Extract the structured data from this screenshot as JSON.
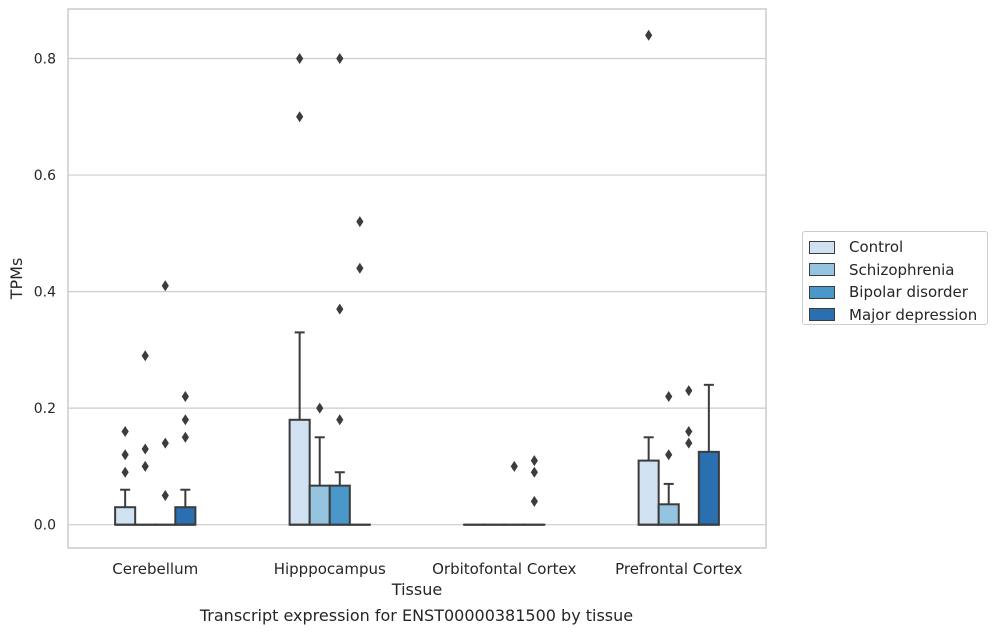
{
  "caption": "Transcript expression for ENST00000381500 by tissue",
  "chart_data": {
    "type": "box",
    "xlabel": "Tissue",
    "ylabel": "TPMs",
    "ylim": [
      -0.04,
      0.885
    ],
    "yticks": [
      0.0,
      0.2,
      0.4,
      0.6,
      0.8
    ],
    "ytick_labels": [
      "0.0",
      "0.2",
      "0.4",
      "0.6",
      "0.8"
    ],
    "grid": "horizontal",
    "legend_position": "right",
    "categories": [
      "Cerebellum",
      "Hipppocampus",
      "Orbitofontal Cortex",
      "Prefrontal Cortex"
    ],
    "series": [
      {
        "name": "Control",
        "color": "#d0e1f2",
        "boxes": [
          {
            "q1": 0.0,
            "median": 0.0,
            "q3": 0.03,
            "whisker_low": 0.0,
            "whisker_high": 0.06,
            "fliers": [
              0.09,
              0.12,
              0.16
            ]
          },
          {
            "q1": 0.0,
            "median": 0.0,
            "q3": 0.18,
            "whisker_low": 0.0,
            "whisker_high": 0.33,
            "fliers": [
              0.7,
              0.8
            ]
          },
          {
            "q1": 0.0,
            "median": 0.0,
            "q3": 0.0,
            "whisker_low": 0.0,
            "whisker_high": 0.0,
            "fliers": []
          },
          {
            "q1": 0.0,
            "median": 0.0,
            "q3": 0.11,
            "whisker_low": 0.0,
            "whisker_high": 0.15,
            "fliers": [
              0.84
            ]
          }
        ]
      },
      {
        "name": "Schizophrenia",
        "color": "#94c4df",
        "boxes": [
          {
            "q1": 0.0,
            "median": 0.0,
            "q3": 0.0,
            "whisker_low": 0.0,
            "whisker_high": 0.0,
            "fliers": [
              0.1,
              0.13,
              0.29
            ]
          },
          {
            "q1": 0.0,
            "median": 0.0,
            "q3": 0.067,
            "whisker_low": 0.0,
            "whisker_high": 0.15,
            "fliers": [
              0.2
            ]
          },
          {
            "q1": 0.0,
            "median": 0.0,
            "q3": 0.0,
            "whisker_low": 0.0,
            "whisker_high": 0.0,
            "fliers": []
          },
          {
            "q1": 0.0,
            "median": 0.0,
            "q3": 0.035,
            "whisker_low": 0.0,
            "whisker_high": 0.07,
            "fliers": [
              0.12,
              0.22
            ]
          }
        ]
      },
      {
        "name": "Bipolar disorder",
        "color": "#4a98c9",
        "boxes": [
          {
            "q1": 0.0,
            "median": 0.0,
            "q3": 0.0,
            "whisker_low": 0.0,
            "whisker_high": 0.0,
            "fliers": [
              0.05,
              0.14,
              0.41
            ]
          },
          {
            "q1": 0.0,
            "median": 0.0,
            "q3": 0.067,
            "whisker_low": 0.0,
            "whisker_high": 0.09,
            "fliers": [
              0.18,
              0.37,
              0.8
            ]
          },
          {
            "q1": 0.0,
            "median": 0.0,
            "q3": 0.0,
            "whisker_low": 0.0,
            "whisker_high": 0.0,
            "fliers": [
              0.1
            ]
          },
          {
            "q1": 0.0,
            "median": 0.0,
            "q3": 0.0,
            "whisker_low": 0.0,
            "whisker_high": 0.0,
            "fliers": [
              0.14,
              0.16,
              0.23
            ]
          }
        ]
      },
      {
        "name": "Major depression",
        "color": "#2a6fb0",
        "boxes": [
          {
            "q1": 0.0,
            "median": 0.0,
            "q3": 0.03,
            "whisker_low": 0.0,
            "whisker_high": 0.06,
            "fliers": [
              0.15,
              0.18,
              0.22
            ]
          },
          {
            "q1": 0.0,
            "median": 0.0,
            "q3": 0.0,
            "whisker_low": 0.0,
            "whisker_high": 0.0,
            "fliers": [
              0.44,
              0.52
            ]
          },
          {
            "q1": 0.0,
            "median": 0.0,
            "q3": 0.0,
            "whisker_low": 0.0,
            "whisker_high": 0.0,
            "fliers": [
              0.04,
              0.09,
              0.11
            ]
          },
          {
            "q1": 0.0,
            "median": 0.0,
            "q3": 0.125,
            "whisker_low": 0.0,
            "whisker_high": 0.24,
            "fliers": []
          }
        ]
      }
    ]
  }
}
